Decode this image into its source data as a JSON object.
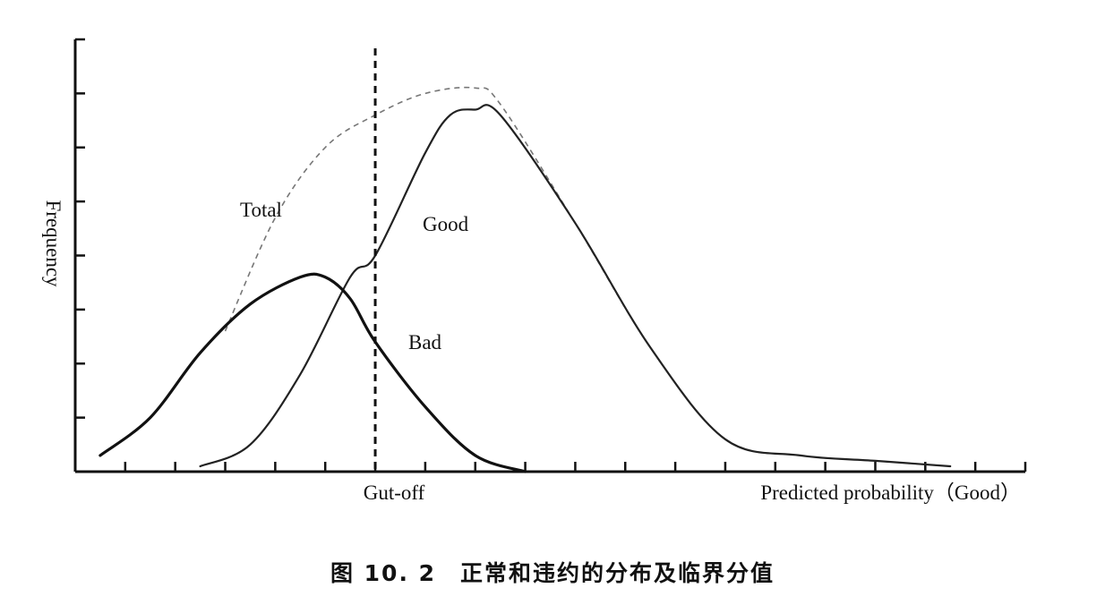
{
  "caption": "图 10. 2　正常和违约的分布及临界分值",
  "chart_data": {
    "type": "line",
    "title": "",
    "xlabel": "Predicted probability（Good）",
    "ylabel": "Frequency",
    "cutoff_label": "Gut-off",
    "cutoff_x": 6.0,
    "xlim": [
      0,
      19
    ],
    "ylim": [
      0,
      8
    ],
    "x_tick_count": 19,
    "y_tick_count": 8,
    "grid": false,
    "legend": "inline labels",
    "series": [
      {
        "name": "Bad",
        "style": "solid-thick",
        "x": [
          0.5,
          1.5,
          2.5,
          3.5,
          4.5,
          5.0,
          5.5,
          6.0,
          7.0,
          8.0,
          9.0
        ],
        "y": [
          0.3,
          1.0,
          2.2,
          3.1,
          3.6,
          3.6,
          3.2,
          2.4,
          1.2,
          0.3,
          0.0
        ]
      },
      {
        "name": "Good",
        "style": "solid",
        "x": [
          2.5,
          3.5,
          4.5,
          5.5,
          6.0,
          7.0,
          7.5,
          8.0,
          8.5,
          10.0,
          11.5,
          13.0,
          14.5,
          16.0,
          17.5
        ],
        "y": [
          0.1,
          0.5,
          1.8,
          3.6,
          4.0,
          5.9,
          6.6,
          6.7,
          6.6,
          4.6,
          2.3,
          0.6,
          0.3,
          0.2,
          0.1
        ]
      },
      {
        "name": "Total",
        "style": "dashed",
        "x": [
          3.0,
          4.0,
          5.0,
          6.0,
          7.0,
          8.0,
          8.5,
          10.0,
          11.5,
          13.0,
          14.5,
          16.0,
          17.5
        ],
        "y": [
          2.6,
          4.7,
          6.0,
          6.6,
          7.0,
          7.1,
          6.8,
          4.6,
          2.3,
          0.6,
          0.3,
          0.2,
          0.1
        ]
      }
    ]
  }
}
